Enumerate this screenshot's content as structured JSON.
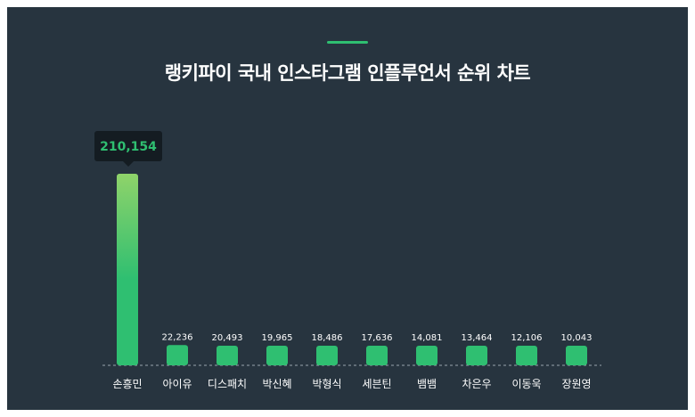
{
  "title": "랭키파이 국내 인스타그램 인플루언서 순위 차트",
  "colors": {
    "background": "#27343f",
    "accent": "#2fbf71",
    "bar_top_highlight": "#8fd36a",
    "bar": "#2fbf71",
    "tooltip_bg": "#141c22",
    "tooltip_text": "#2fbf71",
    "label": "#ffffff"
  },
  "tooltip": {
    "text": "210,154"
  },
  "chart_data": {
    "type": "bar",
    "title": "랭키파이 국내 인스타그램 인플루언서 순위 차트",
    "categories": [
      "손흥민",
      "아이유",
      "디스패치",
      "박신혜",
      "박형식",
      "세븐틴",
      "뱀뱀",
      "차은우",
      "이동욱",
      "장원영"
    ],
    "values": [
      210154,
      22236,
      20493,
      19965,
      18486,
      17636,
      14081,
      13464,
      12106,
      10043
    ],
    "value_labels": [
      "210,154",
      "22,236",
      "20,493",
      "19,965",
      "18,486",
      "17,636",
      "14,081",
      "13,464",
      "12,106",
      "10,043"
    ],
    "highlighted_index": 0,
    "ylim": [
      0,
      210154
    ],
    "grid": false,
    "xlabel": "",
    "ylabel": ""
  }
}
